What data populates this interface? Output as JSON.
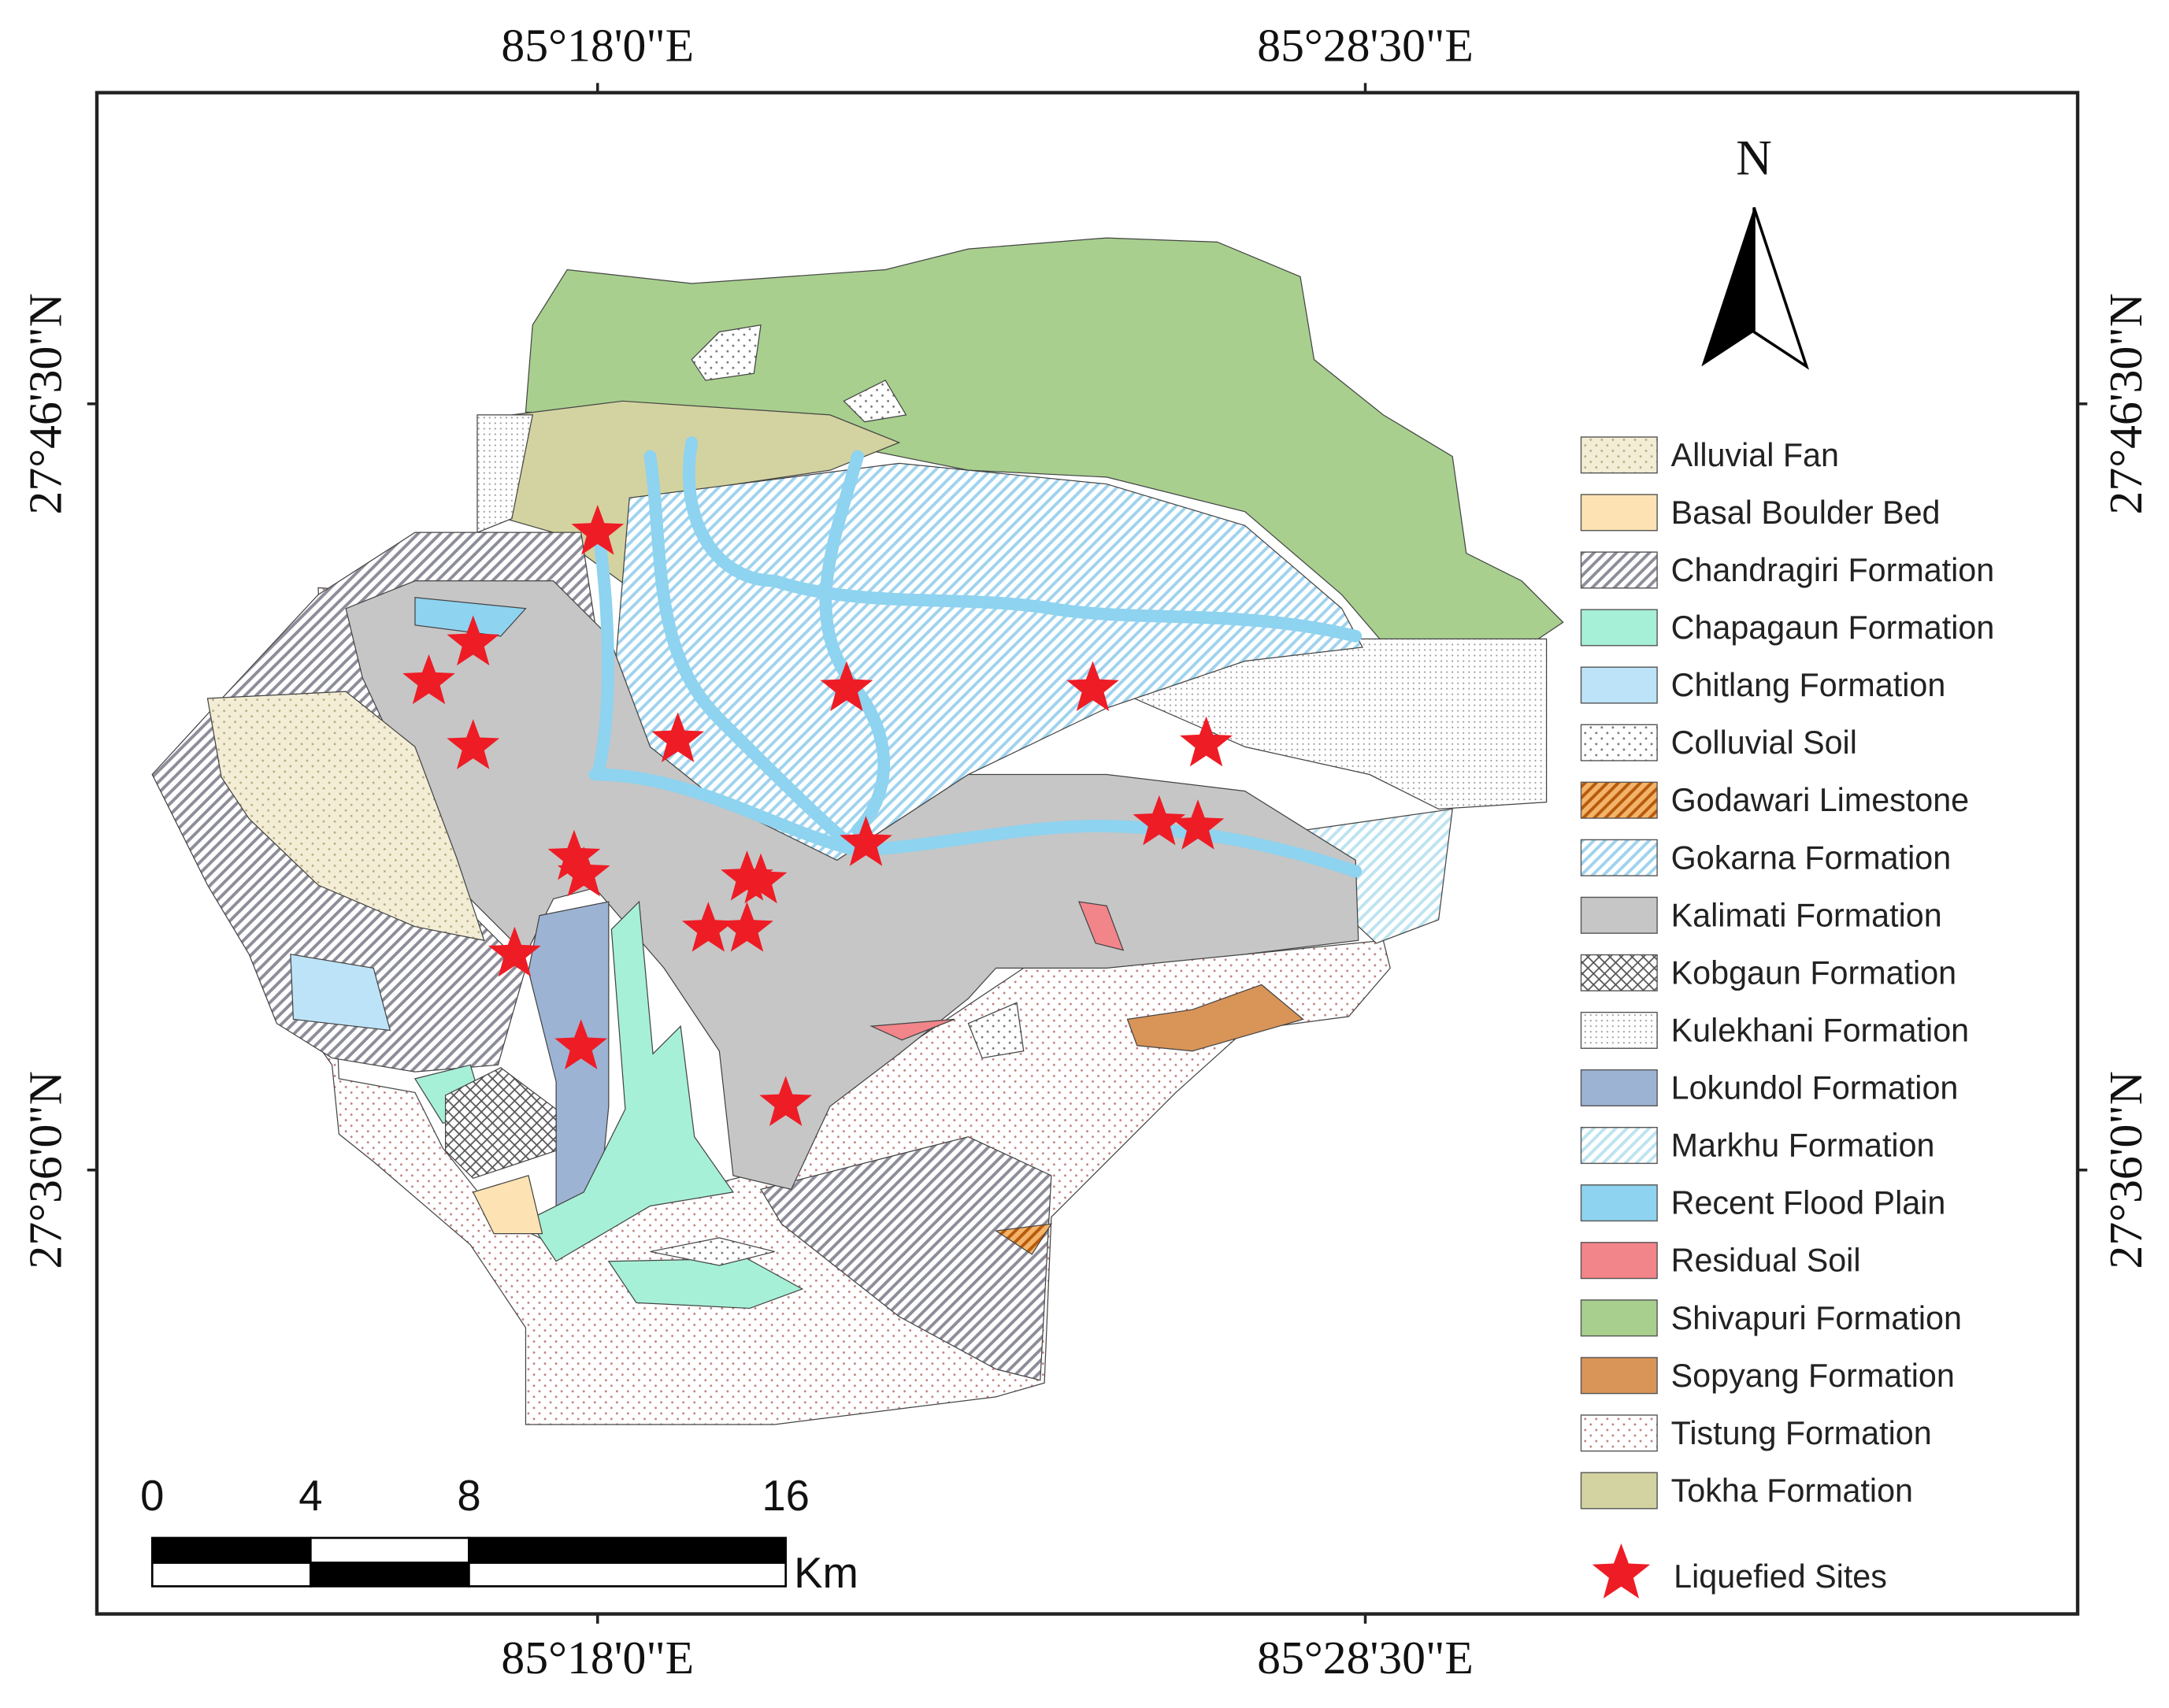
{
  "graticule": {
    "top": [
      "85°18'0\"E",
      "85°28'30\"E"
    ],
    "bottom": [
      "85°18'0\"E",
      "85°28'30\"E"
    ],
    "left": [
      "27°46'30\"N",
      "27°36'0\"N"
    ],
    "right": [
      "27°46'30\"N",
      "27°36'0\"N"
    ]
  },
  "north": "N",
  "legend": {
    "units": [
      {
        "name": "Alluvial Fan",
        "color": "#f3edd6",
        "pattern": "dots",
        "ink": "#b8ac80"
      },
      {
        "name": "Basal Boulder Bed",
        "color": "#fde3b3",
        "pattern": "none",
        "ink": "#fde3b3"
      },
      {
        "name": "Chandragiri Formation",
        "color": "#ffffff",
        "pattern": "hatch",
        "ink": "#8d8d9a"
      },
      {
        "name": "Chapagaun Formation",
        "color": "#a6f0d7",
        "pattern": "none",
        "ink": "#a6f0d7"
      },
      {
        "name": "Chitlang Formation",
        "color": "#bde3f8",
        "pattern": "none",
        "ink": "#bde3f8"
      },
      {
        "name": "Colluvial Soil",
        "color": "#ffffff",
        "pattern": "dots",
        "ink": "#777777"
      },
      {
        "name": "Godawari Limestone",
        "color": "#f3b46a",
        "pattern": "hatch",
        "ink": "#b75a0c"
      },
      {
        "name": "Gokarna Formation",
        "color": "#ffffff",
        "pattern": "hatch",
        "ink": "#9fd3ee"
      },
      {
        "name": "Kalimati Formation",
        "color": "#c6c6c6",
        "pattern": "none",
        "ink": "#c6c6c6"
      },
      {
        "name": "Kobgaun Formation",
        "color": "#ffffff",
        "pattern": "cross",
        "ink": "#555555"
      },
      {
        "name": "Kulekhani Formation",
        "color": "#ffffff",
        "pattern": "fine-dots",
        "ink": "#999999"
      },
      {
        "name": "Lokundol Formation",
        "color": "#9db3d3",
        "pattern": "none",
        "ink": "#9db3d3"
      },
      {
        "name": "Markhu Formation",
        "color": "#ffffff",
        "pattern": "hatch",
        "ink": "#bde3f0"
      },
      {
        "name": "Recent Flood Plain",
        "color": "#8ed3ef",
        "pattern": "none",
        "ink": "#8ed3ef"
      },
      {
        "name": "Residual Soil",
        "color": "#f2858a",
        "pattern": "none",
        "ink": "#f2858a"
      },
      {
        "name": "Shivapuri Formation",
        "color": "#a8cf8e",
        "pattern": "none",
        "ink": "#a8cf8e"
      },
      {
        "name": "Sopyang Formation",
        "color": "#d99458",
        "pattern": "none",
        "ink": "#d99458"
      },
      {
        "name": "Tistung Formation",
        "color": "#ffffff",
        "pattern": "dots",
        "ink": "#c08080"
      },
      {
        "name": "Tokha Formation",
        "color": "#d3d3a1",
        "pattern": "none",
        "ink": "#d3d3a1"
      }
    ],
    "sites": {
      "name": "Liquefied Sites",
      "color": "#ee1c25"
    }
  },
  "scale_bar": {
    "ticks": [
      0,
      4,
      8,
      16
    ],
    "unit": "Km"
  }
}
